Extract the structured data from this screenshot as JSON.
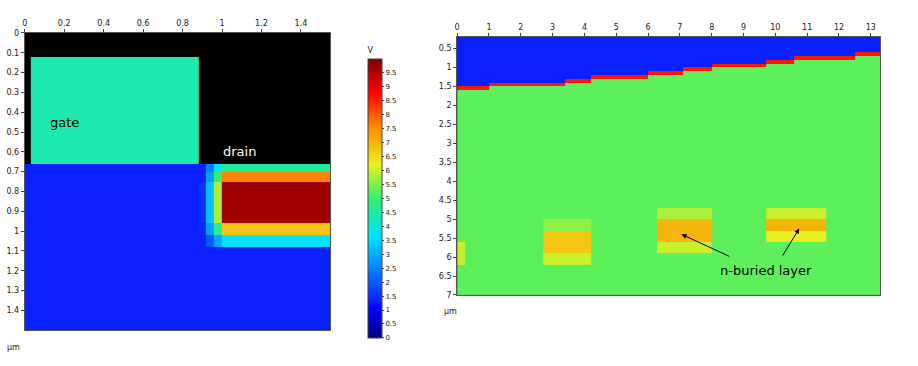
{
  "chart_data": [
    {
      "type": "heatmap",
      "x": [
        0,
        0.03,
        0.88,
        0.92,
        0.96,
        1.0,
        1.55
      ],
      "y": [
        0,
        0.12,
        0.66,
        0.7,
        0.75,
        0.96,
        1.02,
        1.08,
        1.5
      ],
      "z": [
        [
          null,
          null,
          null,
          null,
          null,
          null
        ],
        [
          null,
          4.4,
          null,
          null,
          null,
          null
        ],
        [
          1.3,
          1.3,
          1.3,
          2.4,
          3.6,
          4.6
        ],
        [
          1.3,
          1.3,
          1.3,
          2.8,
          5.0,
          7.6
        ],
        [
          1.3,
          1.3,
          1.5,
          3.2,
          5.8,
          9.7
        ],
        [
          1.3,
          1.3,
          1.4,
          2.8,
          4.6,
          6.8
        ],
        [
          1.3,
          1.3,
          1.3,
          2.0,
          2.9,
          3.6
        ],
        [
          1.3,
          1.3,
          1.3,
          1.3,
          1.3,
          1.3
        ]
      ],
      "xlim": [
        0,
        1.55
      ],
      "ylim": [
        1.5,
        0
      ],
      "xticks": [
        0,
        0.2,
        0.4,
        0.6,
        0.8,
        1,
        1.2,
        1.4
      ],
      "yticks": [
        0,
        0.1,
        0.2,
        0.3,
        0.4,
        0.5,
        0.6,
        0.7,
        0.8,
        0.9,
        1,
        1.1,
        1.2,
        1.3,
        1.4
      ],
      "x_label": "µm",
      "zlim": [
        0,
        10
      ],
      "colorbar": {
        "title": "V",
        "ticks": [
          0,
          0.5,
          1,
          1.5,
          2,
          2.5,
          3,
          3.5,
          4,
          4.5,
          5,
          5.5,
          6,
          6.5,
          7,
          7.5,
          8,
          8.5,
          9,
          9.5
        ]
      },
      "annotations": [
        {
          "text": "gate",
          "x": 0.2,
          "y": 0.45,
          "color": "#000000"
        },
        {
          "text": "drain",
          "x": 1.09,
          "y": 0.6,
          "color": "#ffffff"
        }
      ]
    },
    {
      "type": "heatmap",
      "x": [
        0,
        0.25,
        1,
        2,
        2.7,
        3.4,
        4.2,
        5,
        6,
        6.3,
        7.1,
        8,
        9,
        9.7,
        10.6,
        11.6,
        12.5,
        13.3
      ],
      "y": [
        0.2,
        0.5,
        0.6,
        0.7,
        0.8,
        0.9,
        1.0,
        1.1,
        1.2,
        1.3,
        1.4,
        1.5,
        1.6,
        1.7,
        4.7,
        5.0,
        5.3,
        5.6,
        5.9,
        6.2,
        7.0
      ],
      "z": [
        [
          1.3,
          1.3,
          1.3,
          1.3,
          1.3,
          1.3,
          1.3,
          1.3,
          1.3,
          1.3,
          1.3,
          1.3,
          1.3,
          1.3,
          1.3,
          1.3,
          1.3
        ],
        [
          1.3,
          1.3,
          1.3,
          1.3,
          1.3,
          1.3,
          1.3,
          1.3,
          1.3,
          1.3,
          1.3,
          1.3,
          1.3,
          1.3,
          1.3,
          1.3,
          1.3
        ],
        [
          1.3,
          1.3,
          1.3,
          1.3,
          1.3,
          1.3,
          1.3,
          1.3,
          1.3,
          1.3,
          1.3,
          1.3,
          1.3,
          1.3,
          1.3,
          1.3,
          8.6
        ],
        [
          1.3,
          1.3,
          1.3,
          1.3,
          1.3,
          1.3,
          1.3,
          1.3,
          1.3,
          1.3,
          1.3,
          1.3,
          1.3,
          1.3,
          8.6,
          8.6,
          5.3
        ],
        [
          1.3,
          1.3,
          1.3,
          1.3,
          1.3,
          1.3,
          1.3,
          1.3,
          1.3,
          1.3,
          1.3,
          1.3,
          1.3,
          8.6,
          5.3,
          5.3,
          5.3
        ],
        [
          1.3,
          1.3,
          1.3,
          1.3,
          1.3,
          1.3,
          1.3,
          1.3,
          1.3,
          1.3,
          1.3,
          8.6,
          8.6,
          5.3,
          5.3,
          5.3,
          5.3
        ],
        [
          1.3,
          1.3,
          1.3,
          1.3,
          1.3,
          1.3,
          1.3,
          1.3,
          1.3,
          1.3,
          8.6,
          5.3,
          5.3,
          5.3,
          5.3,
          5.3,
          5.3
        ],
        [
          1.3,
          1.3,
          1.3,
          1.3,
          1.3,
          1.3,
          1.3,
          1.3,
          8.6,
          8.6,
          5.3,
          5.3,
          5.3,
          5.3,
          5.3,
          5.3,
          5.3
        ],
        [
          1.3,
          1.3,
          1.3,
          1.3,
          1.3,
          1.3,
          8.6,
          8.6,
          5.3,
          5.3,
          5.3,
          5.3,
          5.3,
          5.3,
          5.3,
          5.3,
          5.3
        ],
        [
          1.3,
          1.3,
          1.3,
          1.3,
          1.3,
          8.6,
          5.3,
          5.3,
          5.3,
          5.3,
          5.3,
          5.3,
          5.3,
          5.3,
          5.3,
          5.3,
          5.3
        ],
        [
          1.3,
          1.3,
          8.6,
          8.6,
          8.6,
          5.3,
          5.3,
          5.3,
          5.3,
          5.3,
          5.3,
          5.3,
          5.3,
          5.3,
          5.3,
          5.3,
          5.3
        ],
        [
          8.6,
          8.6,
          5.3,
          5.3,
          5.3,
          5.3,
          5.3,
          5.3,
          5.3,
          5.3,
          5.3,
          5.3,
          5.3,
          5.3,
          5.3,
          5.3,
          5.3
        ],
        [
          5.3,
          5.3,
          5.3,
          5.3,
          5.3,
          5.3,
          5.3,
          5.3,
          5.3,
          5.3,
          5.3,
          5.3,
          5.3,
          5.3,
          5.3,
          5.3,
          5.3
        ],
        [
          5.3,
          5.3,
          5.3,
          5.3,
          5.3,
          5.3,
          5.3,
          5.3,
          5.3,
          5.3,
          5.3,
          5.3,
          5.3,
          5.3,
          5.3,
          5.3,
          5.3
        ],
        [
          5.3,
          5.3,
          5.3,
          5.3,
          5.3,
          5.3,
          5.3,
          5.3,
          5.3,
          5.8,
          5.8,
          5.3,
          5.3,
          6.0,
          6.0,
          5.3,
          5.3
        ],
        [
          5.3,
          5.3,
          5.3,
          5.3,
          5.6,
          5.6,
          5.3,
          5.3,
          5.3,
          7.0,
          7.0,
          5.3,
          5.3,
          7.0,
          7.0,
          5.3,
          5.3
        ],
        [
          5.3,
          5.3,
          5.3,
          5.3,
          6.8,
          6.8,
          5.3,
          5.3,
          5.3,
          7.0,
          7.0,
          5.3,
          5.3,
          6.2,
          6.2,
          5.3,
          5.3
        ],
        [
          6.0,
          5.3,
          5.3,
          5.3,
          6.8,
          6.8,
          5.3,
          5.3,
          5.3,
          6.0,
          6.0,
          5.3,
          5.3,
          5.3,
          5.3,
          5.3,
          5.3
        ],
        [
          6.0,
          5.3,
          5.3,
          5.3,
          6.0,
          6.0,
          5.3,
          5.3,
          5.3,
          5.3,
          5.3,
          5.3,
          5.3,
          5.3,
          5.3,
          5.3,
          5.3
        ],
        [
          5.3,
          5.3,
          5.3,
          5.3,
          5.3,
          5.3,
          5.3,
          5.3,
          5.3,
          5.3,
          5.3,
          5.3,
          5.3,
          5.3,
          5.3,
          5.3,
          5.3
        ]
      ],
      "xlim": [
        0,
        13.3
      ],
      "ylim": [
        7,
        0.2
      ],
      "xticks": [
        0,
        1,
        2,
        3,
        4,
        5,
        6,
        7,
        8,
        9,
        10,
        11,
        12,
        13
      ],
      "yticks": [
        0.5,
        1,
        1.5,
        2,
        2.5,
        3,
        3.5,
        4,
        4.5,
        5,
        5.5,
        6,
        6.5,
        7
      ],
      "x_label": "µm",
      "zlim": [
        0,
        10
      ],
      "annotations": [
        {
          "text": "n-buried layer",
          "x": 9.7,
          "y": 6.35,
          "color": "#000000"
        }
      ],
      "arrows": [
        {
          "x": 7.05,
          "y": 5.4,
          "ax": 8.6,
          "ay": 6.0
        },
        {
          "x": 10.75,
          "y": 5.25,
          "ax": 10.2,
          "ay": 6.0
        }
      ]
    }
  ]
}
